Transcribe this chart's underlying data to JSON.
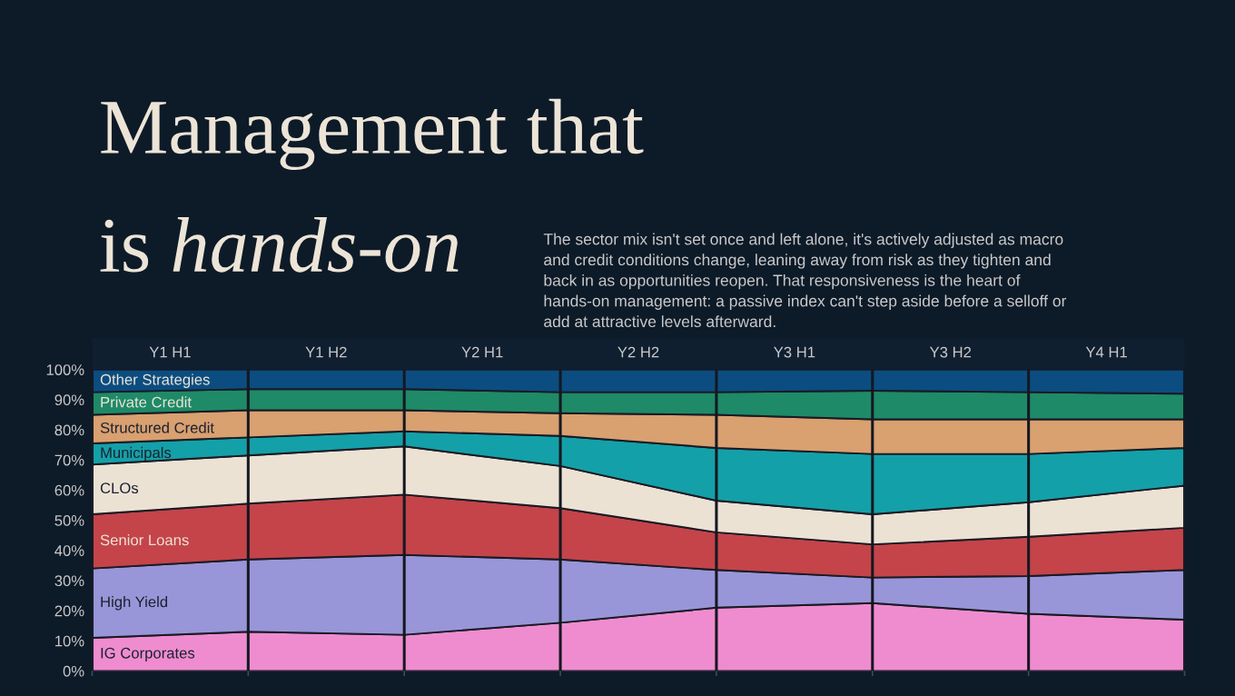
{
  "chart_data": {
    "type": "area",
    "stacked": true,
    "title": "Management that is hands-on",
    "subtitle": "The sector mix isn't set once and left alone, it's actively adjusted as macro and credit conditions change, leaning away from risk as they tighten and back in as opportunities reopen. That responsiveness is the heart of hands-on management: a passive index can't step aside before a selloff or add at attractive levels afterward.",
    "categories": [
      null,
      null,
      null,
      null,
      null,
      null,
      null,
      null
    ],
    "annotations": [
      "Y1 H1",
      "Y1 H2",
      "Y2 H1",
      "Y2 H2",
      "Y3 H1",
      "Y3 H2",
      "Y4 H1"
    ],
    "ylim": [
      0,
      100
    ],
    "yticks": [
      {
        "value": 0,
        "label": "0%"
      },
      {
        "value": 10,
        "label": "10%"
      },
      {
        "value": 20,
        "label": "20%"
      },
      {
        "value": 30,
        "label": "30%"
      },
      {
        "value": 40,
        "label": "40%"
      },
      {
        "value": 50,
        "label": "50%"
      },
      {
        "value": 60,
        "label": "60%"
      },
      {
        "value": 70,
        "label": "70%"
      },
      {
        "value": 80,
        "label": "80%"
      },
      {
        "value": 90,
        "label": "90%"
      },
      {
        "value": 100,
        "label": "100%"
      }
    ],
    "grid": "x",
    "legend": false,
    "series": [
      {
        "name": "IG Corporates",
        "color": "#ef8ccf",
        "values": [
          11,
          13,
          12,
          16,
          21,
          22.5,
          19,
          17
        ]
      },
      {
        "name": "High Yield",
        "color": "#9896d8",
        "values": [
          23,
          24,
          26.5,
          21,
          12.5,
          8.5,
          12.5,
          16.5
        ]
      },
      {
        "name": "Senior Loans",
        "color": "#c4444a",
        "values": [
          18,
          18.5,
          20,
          17,
          12.5,
          11,
          13,
          14
        ]
      },
      {
        "name": "CLOs",
        "color": "#ebe2d4",
        "values": [
          16.5,
          16,
          16,
          14,
          10.5,
          10,
          11.5,
          14
        ]
      },
      {
        "name": "Municipals",
        "color": "#14a0a8",
        "values": [
          7,
          6,
          5,
          10,
          17.5,
          20,
          16,
          12.5
        ]
      },
      {
        "name": "Structured Credit",
        "color": "#d9a070",
        "values": [
          9.5,
          9,
          7,
          7.5,
          11,
          11.5,
          11.5,
          9.5
        ]
      },
      {
        "name": "Private Credit",
        "color": "#1e8a68",
        "values": [
          7.5,
          7,
          7,
          7,
          7.5,
          9.5,
          9,
          8.5
        ]
      },
      {
        "name": "Other Strategies",
        "color": "#0b4d80",
        "values": [
          7.5,
          6.5,
          6.5,
          7.5,
          7.5,
          7,
          7.5,
          8
        ]
      }
    ]
  }
}
